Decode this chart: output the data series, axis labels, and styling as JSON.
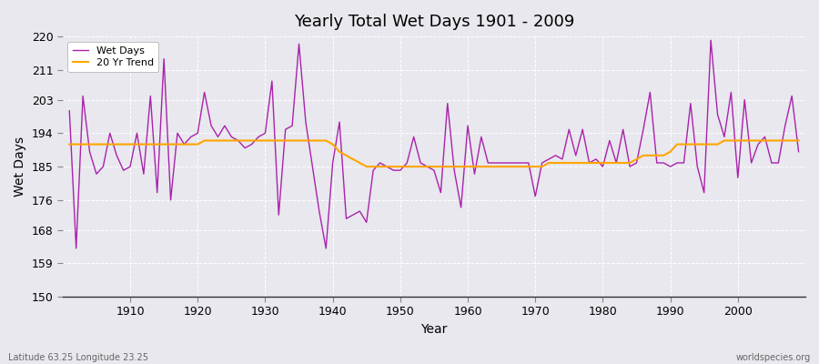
{
  "title": "Yearly Total Wet Days 1901 - 2009",
  "xlabel": "Year",
  "ylabel": "Wet Days",
  "footnote_left": "Latitude 63.25 Longitude 23.25",
  "footnote_right": "worldspecies.org",
  "ylim": [
    150,
    220
  ],
  "yticks": [
    150,
    159,
    168,
    176,
    185,
    194,
    203,
    211,
    220
  ],
  "xlim": [
    1901,
    2009
  ],
  "xticks": [
    1910,
    1920,
    1930,
    1940,
    1950,
    1960,
    1970,
    1980,
    1990,
    2000
  ],
  "line_color": "#AA22AA",
  "trend_color": "#FFA500",
  "bg_color": "#E8E8EE",
  "wet_days": [
    200,
    163,
    204,
    189,
    183,
    185,
    194,
    188,
    184,
    185,
    194,
    183,
    204,
    178,
    214,
    176,
    194,
    191,
    193,
    194,
    205,
    196,
    193,
    196,
    193,
    192,
    190,
    191,
    193,
    194,
    208,
    172,
    195,
    196,
    218,
    197,
    185,
    173,
    163,
    186,
    197,
    171,
    172,
    173,
    170,
    184,
    186,
    185,
    184,
    184,
    186,
    193,
    186,
    185,
    184,
    178,
    202,
    184,
    174,
    196,
    183,
    193,
    186,
    186,
    186,
    186,
    186,
    186,
    186,
    177,
    186,
    187,
    188,
    187,
    195,
    188,
    195,
    186,
    187,
    185,
    192,
    186,
    195,
    185,
    186,
    195,
    205,
    186,
    186,
    185,
    186,
    186,
    202,
    185,
    178,
    219,
    199,
    193,
    205,
    182,
    203,
    186,
    191,
    193,
    186,
    186,
    196,
    204,
    189
  ],
  "trend": [
    191,
    191,
    191,
    191,
    191,
    191,
    191,
    191,
    191,
    191,
    191,
    191,
    191,
    191,
    191,
    191,
    191,
    191,
    191,
    191,
    192,
    192,
    192,
    192,
    192,
    192,
    192,
    192,
    192,
    192,
    192,
    192,
    192,
    192,
    192,
    192,
    192,
    192,
    192,
    191,
    189,
    188,
    187,
    186,
    185,
    185,
    185,
    185,
    185,
    185,
    185,
    185,
    185,
    185,
    185,
    185,
    185,
    185,
    185,
    185,
    185,
    185,
    185,
    185,
    185,
    185,
    185,
    185,
    185,
    185,
    185,
    186,
    186,
    186,
    186,
    186,
    186,
    186,
    186,
    186,
    186,
    186,
    186,
    186,
    187,
    188,
    188,
    188,
    188,
    189,
    191,
    191,
    191,
    191,
    191,
    191,
    191,
    192,
    192,
    192,
    192,
    192,
    192,
    192,
    192,
    192,
    192,
    192,
    192
  ],
  "legend_wet": "Wet Days",
  "legend_trend": "20 Yr Trend"
}
